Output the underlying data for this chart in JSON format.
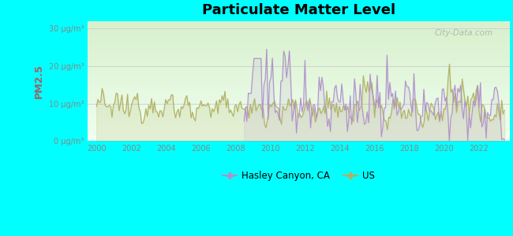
{
  "title": "Particulate Matter Level",
  "ylabel": "PM2.5",
  "xlabel": "",
  "background_outer": "#00FFFF",
  "ylim": [
    0,
    32
  ],
  "yticks": [
    0,
    10,
    20,
    30
  ],
  "ytick_labels": [
    "0 μg/m³",
    "10 μg/m³",
    "20 μg/m³",
    "30 μg/m³"
  ],
  "xlim": [
    1999.5,
    2023.8
  ],
  "xticks": [
    2000,
    2002,
    2004,
    2006,
    2008,
    2010,
    2012,
    2014,
    2016,
    2018,
    2020,
    2022
  ],
  "color_hasley": "#b090cc",
  "color_us": "#b0b060",
  "hasley_start_year": 2008.5,
  "watermark": "City-Data.com",
  "legend_hasley": "Hasley Canyon, CA",
  "legend_us": "US",
  "ylabel_color": "#996666",
  "tick_color": "#888888",
  "grid_color": "#cccccc"
}
